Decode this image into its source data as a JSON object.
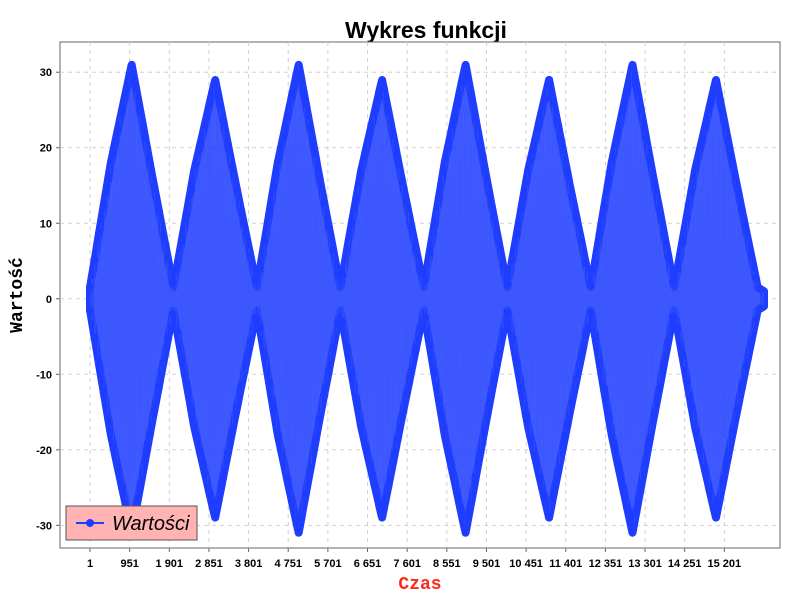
{
  "chart_data": {
    "type": "line",
    "title": "Wykres funkcji",
    "xlabel": "Czas",
    "ylabel": "Wartość",
    "x_range": [
      1,
      16151
    ],
    "ylim": [
      -33,
      34
    ],
    "x_tick_values": [
      1,
      951,
      1901,
      2851,
      3801,
      4751,
      5701,
      6651,
      7601,
      8551,
      9501,
      10451,
      11401,
      12351,
      13301,
      14251,
      15201
    ],
    "x_tick_labels": [
      "1",
      "951",
      "1 901",
      "2 851",
      "3 801",
      "4 751",
      "5 701",
      "6 651",
      "7 601",
      "8 551",
      "9 501",
      "10 451",
      "11 401",
      "12 351",
      "13 301",
      "14 251",
      "15 201"
    ],
    "y_ticks": [
      -30,
      -20,
      -10,
      0,
      10,
      20,
      30
    ],
    "y_tick_labels": [
      "-30",
      "-20",
      "-10",
      "0",
      "10",
      "20",
      "30"
    ],
    "grid": true,
    "legend_position": "bottom-left",
    "series": [
      {
        "name": "Wartości",
        "color": "#1f3dff",
        "marker": "circle",
        "envelope_x": [
          1,
          500,
          1000,
          1500,
          2000,
          2500,
          3000,
          3500,
          4000,
          4500,
          5000,
          5500,
          6000,
          6500,
          7000,
          7500,
          8000,
          8500,
          9000,
          9500,
          10000,
          10500,
          11000,
          11500,
          12000,
          12500,
          13000,
          13500,
          14000,
          14500,
          15000,
          15500,
          16000,
          16151
        ],
        "envelope_amplitude": [
          1.5,
          18,
          31,
          16,
          1.5,
          17,
          29,
          15,
          1.5,
          18,
          31,
          16,
          1.5,
          17,
          29,
          15,
          1.5,
          18,
          31,
          16,
          1.5,
          17,
          29,
          15,
          1.5,
          18,
          31,
          16,
          1.5,
          17,
          29,
          15,
          1.5,
          1
        ]
      }
    ]
  }
}
